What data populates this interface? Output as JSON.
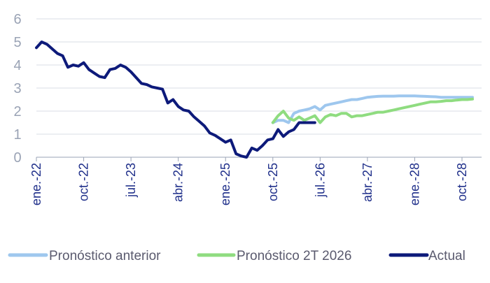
{
  "chart_data": {
    "type": "line",
    "grid": true,
    "legend_position": "bottom",
    "ylim": [
      0,
      6
    ],
    "yticks": [
      0,
      1,
      2,
      3,
      4,
      5,
      6
    ],
    "xticks": [
      "ene.-22",
      "oct.-22",
      "jul.-23",
      "abr.-24",
      "ene.-25",
      "oct.-25",
      "jul.-26",
      "abr.-27",
      "ene.-28",
      "oct.-28"
    ],
    "x_range": [
      "2022-01",
      "2028-12"
    ],
    "series": [
      {
        "name": "Pronóstico anterior",
        "color": "#9ec7ee",
        "x": [
          "2025-10",
          "2025-11",
          "2025-12",
          "2026-01",
          "2026-02",
          "2026-03",
          "2026-04",
          "2026-05",
          "2026-06",
          "2026-07",
          "2026-08",
          "2026-09",
          "2026-10",
          "2026-11",
          "2026-12",
          "2027-01",
          "2027-02",
          "2027-03",
          "2027-04",
          "2027-05",
          "2027-06",
          "2027-07",
          "2027-08",
          "2027-09",
          "2027-10",
          "2027-11",
          "2027-12",
          "2028-01",
          "2028-02",
          "2028-03",
          "2028-04",
          "2028-05",
          "2028-06",
          "2028-07",
          "2028-08",
          "2028-09",
          "2028-10",
          "2028-11",
          "2028-12"
        ],
        "values": [
          1.5,
          1.6,
          1.6,
          1.5,
          1.9,
          2.0,
          2.05,
          2.1,
          2.2,
          2.05,
          2.25,
          2.3,
          2.35,
          2.4,
          2.45,
          2.5,
          2.5,
          2.55,
          2.6,
          2.62,
          2.64,
          2.65,
          2.65,
          2.65,
          2.66,
          2.66,
          2.66,
          2.66,
          2.65,
          2.64,
          2.63,
          2.62,
          2.6,
          2.6,
          2.6,
          2.6,
          2.6,
          2.6,
          2.6
        ]
      },
      {
        "name": "Pronóstico 2T 2026",
        "color": "#8fdc80",
        "x": [
          "2025-10",
          "2025-11",
          "2025-12",
          "2026-01",
          "2026-02",
          "2026-03",
          "2026-04",
          "2026-05",
          "2026-06",
          "2026-07",
          "2026-08",
          "2026-09",
          "2026-10",
          "2026-11",
          "2026-12",
          "2027-01",
          "2027-02",
          "2027-03",
          "2027-04",
          "2027-05",
          "2027-06",
          "2027-07",
          "2027-08",
          "2027-09",
          "2027-10",
          "2027-11",
          "2027-12",
          "2028-01",
          "2028-02",
          "2028-03",
          "2028-04",
          "2028-05",
          "2028-06",
          "2028-07",
          "2028-08",
          "2028-09",
          "2028-10",
          "2028-11",
          "2028-12"
        ],
        "values": [
          1.5,
          1.8,
          2.0,
          1.7,
          1.6,
          1.75,
          1.6,
          1.7,
          1.8,
          1.5,
          1.75,
          1.85,
          1.8,
          1.9,
          1.9,
          1.75,
          1.8,
          1.8,
          1.85,
          1.9,
          1.95,
          1.95,
          2.0,
          2.05,
          2.1,
          2.15,
          2.2,
          2.25,
          2.3,
          2.35,
          2.4,
          2.4,
          2.42,
          2.45,
          2.45,
          2.48,
          2.5,
          2.5,
          2.52
        ]
      },
      {
        "name": "Actual",
        "color": "#0d1a7a",
        "x": [
          "2022-01",
          "2022-02",
          "2022-03",
          "2022-04",
          "2022-05",
          "2022-06",
          "2022-07",
          "2022-08",
          "2022-09",
          "2022-10",
          "2022-11",
          "2022-12",
          "2023-01",
          "2023-02",
          "2023-03",
          "2023-04",
          "2023-05",
          "2023-06",
          "2023-07",
          "2023-08",
          "2023-09",
          "2023-10",
          "2023-11",
          "2023-12",
          "2024-01",
          "2024-02",
          "2024-03",
          "2024-04",
          "2024-05",
          "2024-06",
          "2024-07",
          "2024-08",
          "2024-09",
          "2024-10",
          "2024-11",
          "2024-12",
          "2025-01",
          "2025-02",
          "2025-03",
          "2025-04",
          "2025-05",
          "2025-06",
          "2025-07",
          "2025-08",
          "2025-09",
          "2025-10",
          "2025-11",
          "2025-12",
          "2026-01",
          "2026-02",
          "2026-03",
          "2026-04",
          "2026-05",
          "2026-06"
        ],
        "values": [
          4.75,
          5.0,
          4.9,
          4.7,
          4.5,
          4.4,
          3.9,
          4.0,
          3.95,
          4.1,
          3.8,
          3.65,
          3.5,
          3.45,
          3.8,
          3.85,
          4.0,
          3.9,
          3.7,
          3.45,
          3.2,
          3.15,
          3.05,
          3.0,
          2.95,
          2.35,
          2.5,
          2.2,
          2.05,
          2.0,
          1.75,
          1.55,
          1.35,
          1.05,
          0.95,
          0.8,
          0.65,
          0.75,
          0.15,
          0.05,
          0.0,
          0.4,
          0.3,
          0.5,
          0.75,
          0.8,
          1.2,
          0.9,
          1.1,
          1.2,
          1.5,
          1.5,
          1.5,
          1.5
        ]
      }
    ]
  }
}
